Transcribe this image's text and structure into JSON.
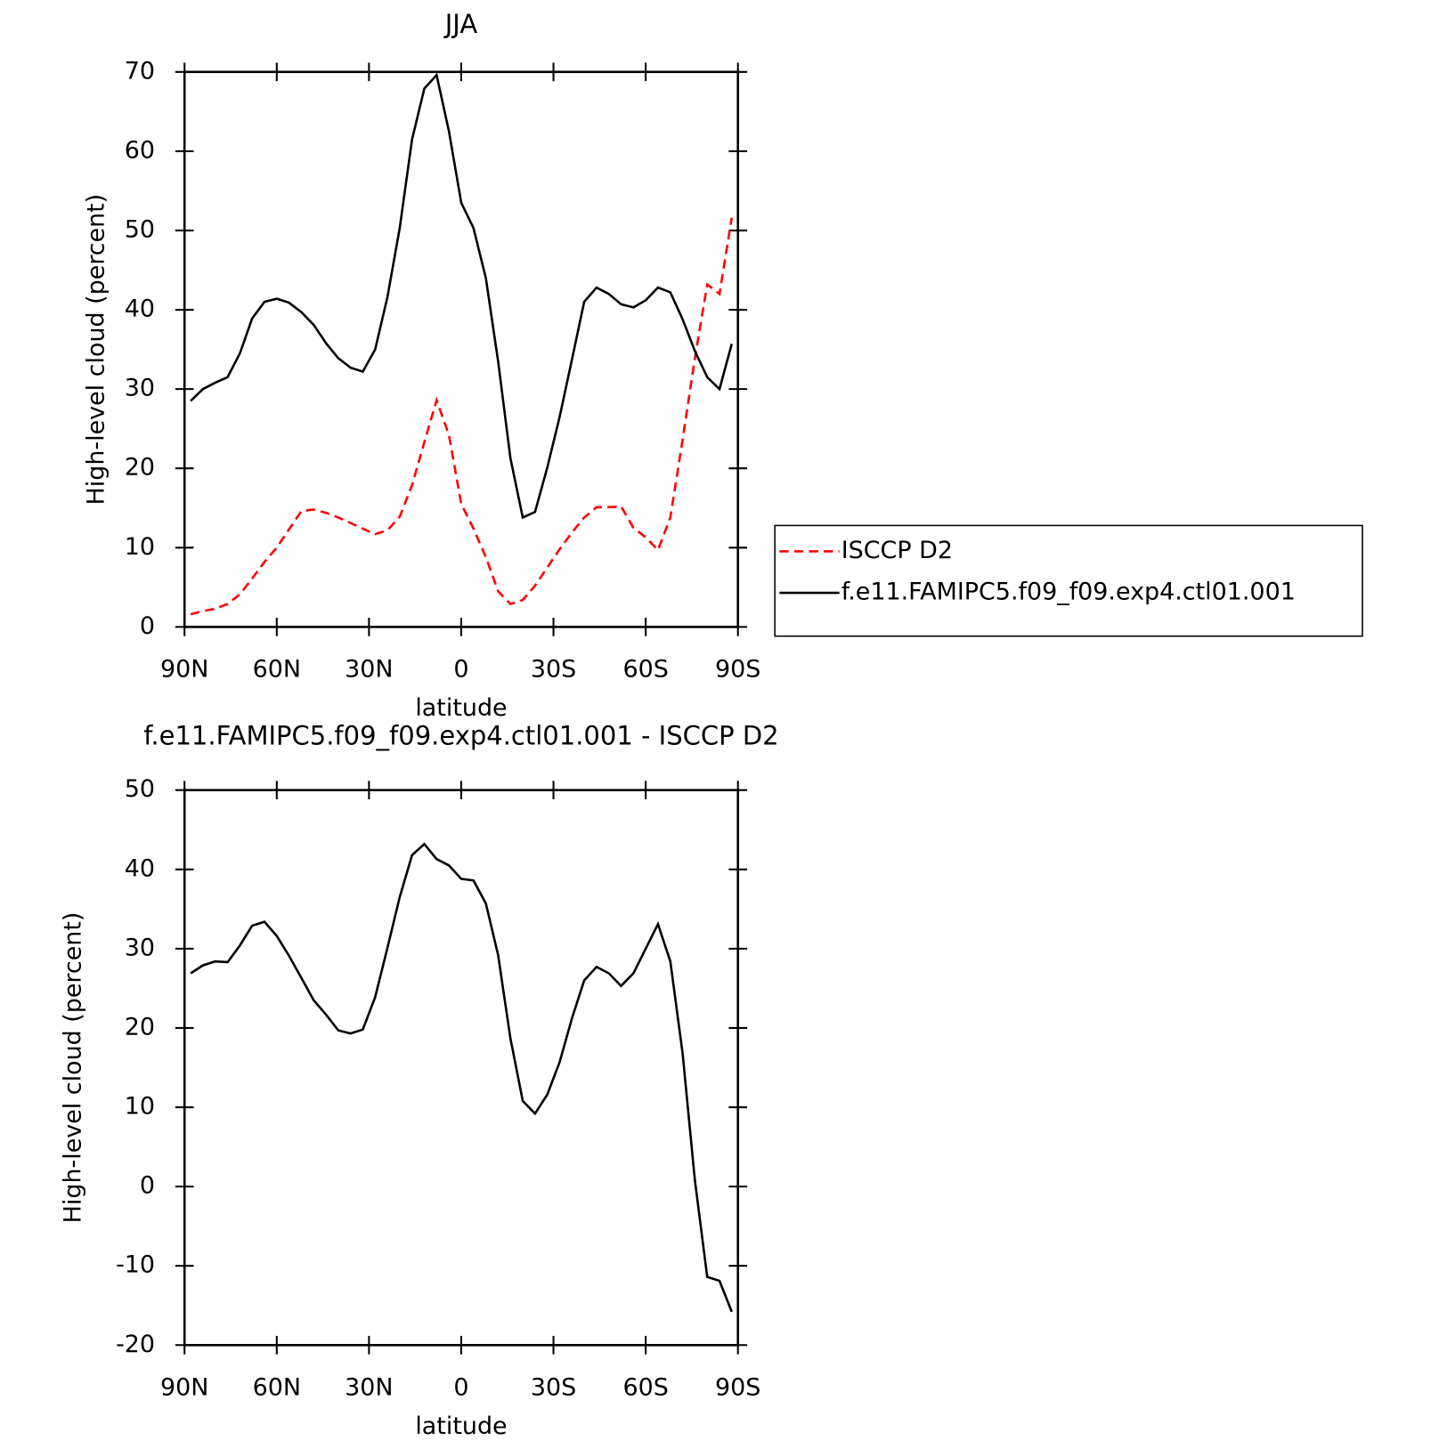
{
  "chart_data": [
    {
      "type": "line",
      "title": "JJA",
      "xlabel": "latitude",
      "ylabel": "High-level cloud (percent)",
      "x": [
        88,
        84,
        80,
        76,
        72,
        68,
        64,
        60,
        56,
        52,
        48,
        44,
        40,
        36,
        32,
        28,
        24,
        20,
        16,
        12,
        8,
        4,
        0,
        -4,
        -8,
        -12,
        -16,
        -20,
        -24,
        -28,
        -32,
        -36,
        -40,
        -44,
        -48,
        -52,
        -56,
        -60,
        -64,
        -68,
        -72,
        -76,
        -80,
        -84,
        -88
      ],
      "series": [
        {
          "name": "ISCCP D2",
          "color": "#ff0000",
          "dashed": true,
          "values": [
            1.6,
            2.0,
            2.3,
            2.9,
            4.1,
            6.1,
            8.2,
            10.0,
            12.3,
            14.6,
            14.8,
            14.4,
            13.8,
            13.1,
            12.4,
            11.7,
            12.2,
            13.9,
            17.9,
            23.3,
            28.6,
            24.2,
            15.5,
            12.4,
            8.8,
            4.5,
            2.9,
            3.4,
            5.2,
            7.5,
            9.8,
            11.9,
            13.8,
            15.1,
            15.1,
            15.2,
            12.5,
            11.3,
            9.7,
            13.8,
            23.6,
            33.9,
            43.2,
            42.0,
            51.6
          ]
        },
        {
          "name": "f.e11.FAMIPC5.f09_f09.exp4.ctl01.001",
          "color": "#000000",
          "dashed": false,
          "values": [
            28.5,
            30.0,
            30.8,
            31.5,
            34.5,
            38.9,
            41.0,
            41.4,
            40.9,
            39.7,
            38.1,
            35.8,
            33.9,
            32.7,
            32.2,
            35.0,
            41.6,
            50.3,
            61.5,
            67.9,
            69.6,
            62.5,
            53.5,
            50.3,
            44.0,
            33.5,
            21.3,
            13.8,
            14.5,
            20.1,
            26.5,
            33.7,
            41.0,
            42.8,
            42.0,
            40.7,
            40.3,
            41.2,
            42.8,
            42.2,
            38.8,
            34.8,
            31.5,
            30.0,
            35.7
          ]
        }
      ],
      "xlim": [
        90,
        -90
      ],
      "xticks": [
        {
          "value": 90,
          "label": "90N"
        },
        {
          "value": 60,
          "label": "60N"
        },
        {
          "value": 30,
          "label": "30N"
        },
        0,
        {
          "value": -30,
          "label": "30S"
        },
        {
          "value": -60,
          "label": "60S"
        },
        {
          "value": -90,
          "label": "90S"
        }
      ],
      "ylim": [
        0,
        70
      ],
      "yticks": [
        0,
        10,
        20,
        30,
        40,
        50,
        60,
        70
      ],
      "legend": "right"
    },
    {
      "type": "line",
      "title": "f.e11.FAMIPC5.f09_f09.exp4.ctl01.001 - ISCCP D2",
      "xlabel": "latitude",
      "ylabel": "High-level cloud (percent)",
      "x": [
        88,
        84,
        80,
        76,
        72,
        68,
        64,
        60,
        56,
        52,
        48,
        44,
        40,
        36,
        32,
        28,
        24,
        20,
        16,
        12,
        8,
        4,
        0,
        -4,
        -8,
        -12,
        -16,
        -20,
        -24,
        -28,
        -32,
        -36,
        -40,
        -44,
        -48,
        -52,
        -56,
        -60,
        -64,
        -68,
        -72,
        -76,
        -80,
        -84,
        -88
      ],
      "series": [
        {
          "color": "#000000",
          "dashed": false,
          "values": [
            26.9,
            27.9,
            28.4,
            28.3,
            30.4,
            32.9,
            33.4,
            31.6,
            29.1,
            26.3,
            23.5,
            21.7,
            19.7,
            19.3,
            19.8,
            23.9,
            30.1,
            36.5,
            41.8,
            43.2,
            41.3,
            40.5,
            38.8,
            38.6,
            35.7,
            29.2,
            18.7,
            10.8,
            9.2,
            11.6,
            15.7,
            21.2,
            26.0,
            27.7,
            26.9,
            25.3,
            26.9,
            30.0,
            33.1,
            28.4,
            16.8,
            0.8,
            -11.4,
            -11.9,
            -15.8
          ]
        }
      ],
      "xlim": [
        90,
        -90
      ],
      "xticks": [
        {
          "value": 90,
          "label": "90N"
        },
        {
          "value": 60,
          "label": "60N"
        },
        {
          "value": 30,
          "label": "30N"
        },
        0,
        {
          "value": -30,
          "label": "30S"
        },
        {
          "value": -60,
          "label": "60S"
        },
        {
          "value": -90,
          "label": "90S"
        }
      ],
      "ylim": [
        -20,
        50
      ],
      "yticks": [
        -20,
        -10,
        0,
        10,
        20,
        30,
        40,
        50
      ]
    }
  ]
}
